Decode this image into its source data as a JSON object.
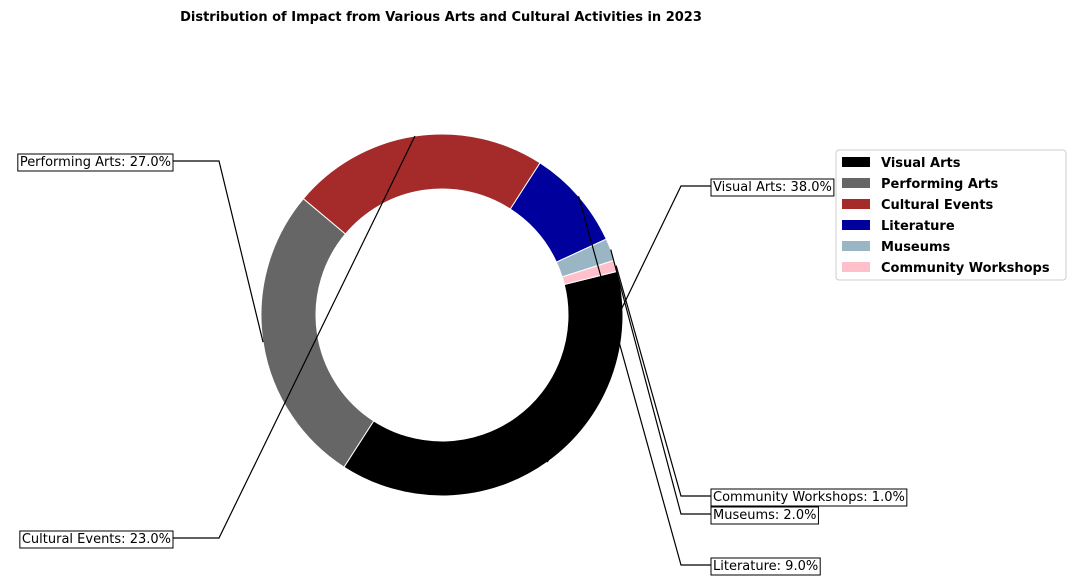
{
  "chart_data": {
    "type": "pie",
    "variant": "donut",
    "title": "Distribution of Impact from Various Arts and Cultural Activities in 2023",
    "legend_position": "right",
    "categories": [
      "Visual Arts",
      "Performing Arts",
      "Cultural Events",
      "Literature",
      "Museums",
      "Community Workshops"
    ],
    "values": [
      38.0,
      27.0,
      23.0,
      9.0,
      2.0,
      1.0
    ],
    "labels": [
      "Visual Arts: 38.0%",
      "Performing Arts: 27.0%",
      "Cultural Events: 23.0%",
      "Literature: 9.0%",
      "Museums: 2.0%",
      "Community Workshops: 1.0%"
    ],
    "colors": [
      "#000000",
      "#666666",
      "#a52a2a",
      "#00009c",
      "#9ab5c4",
      "#ffc0cb"
    ]
  }
}
